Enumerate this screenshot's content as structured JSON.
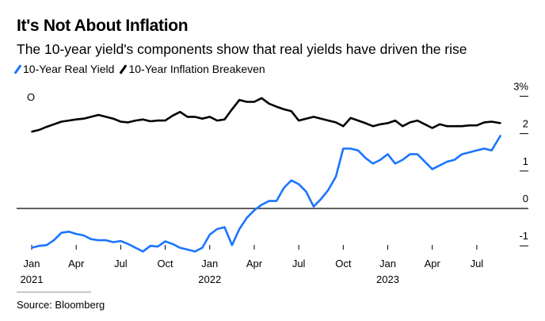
{
  "title": "It's Not About Inflation",
  "subtitle": "The 10-year yield's components show that real yields have driven the rise",
  "source": "Source: Bloomberg",
  "marker_label": "O",
  "chart_data": {
    "type": "line",
    "title": "It's Not About Inflation",
    "xlabel": "",
    "ylabel": "",
    "ylim": [
      -1.2,
      3
    ],
    "y_ticks": [
      {
        "value": 3,
        "label": "3%"
      },
      {
        "value": 2,
        "label": "2"
      },
      {
        "value": 1,
        "label": "1"
      },
      {
        "value": 0,
        "label": "0"
      },
      {
        "value": -1,
        "label": "-1"
      }
    ],
    "x_ticks": [
      {
        "month": 0,
        "label": "Jan",
        "year": "2021"
      },
      {
        "month": 3,
        "label": "Apr",
        "year": ""
      },
      {
        "month": 6,
        "label": "Jul",
        "year": ""
      },
      {
        "month": 9,
        "label": "Oct",
        "year": ""
      },
      {
        "month": 12,
        "label": "Jan",
        "year": "2022"
      },
      {
        "month": 15,
        "label": "Apr",
        "year": ""
      },
      {
        "month": 18,
        "label": "Jul",
        "year": ""
      },
      {
        "month": 21,
        "label": "Oct",
        "year": ""
      },
      {
        "month": 24,
        "label": "Jan",
        "year": "2023"
      },
      {
        "month": 27,
        "label": "Apr",
        "year": ""
      },
      {
        "month": 30,
        "label": "Jul",
        "year": ""
      }
    ],
    "x_unit": "months since Jan 2021",
    "x": [
      0,
      0.5,
      1,
      1.5,
      2,
      2.5,
      3,
      3.5,
      4,
      4.5,
      5,
      5.5,
      6,
      6.5,
      7,
      7.5,
      8,
      8.5,
      9,
      9.5,
      10,
      10.5,
      11,
      11.5,
      12,
      12.5,
      13,
      13.5,
      14,
      14.5,
      15,
      15.5,
      16,
      16.5,
      17,
      17.5,
      18,
      18.5,
      19,
      19.5,
      20,
      20.5,
      21,
      21.5,
      22,
      22.5,
      23,
      23.5,
      24,
      24.5,
      25,
      25.5,
      26,
      26.5,
      27,
      27.5,
      28,
      28.5,
      29,
      29.5,
      30,
      30.5,
      31,
      31.6
    ],
    "series": [
      {
        "name": "10-Year Real Yield",
        "color": "#1a75ff",
        "values": [
          -1.05,
          -1.0,
          -0.98,
          -0.85,
          -0.65,
          -0.62,
          -0.68,
          -0.72,
          -0.82,
          -0.85,
          -0.85,
          -0.9,
          -0.87,
          -0.95,
          -1.05,
          -1.15,
          -1.0,
          -1.02,
          -0.88,
          -0.95,
          -1.05,
          -1.1,
          -1.15,
          -1.05,
          -0.7,
          -0.55,
          -0.5,
          -0.98,
          -0.55,
          -0.25,
          -0.05,
          0.1,
          0.2,
          0.2,
          0.55,
          0.75,
          0.65,
          0.45,
          0.05,
          0.25,
          0.5,
          0.85,
          1.6,
          1.6,
          1.55,
          1.35,
          1.2,
          1.3,
          1.45,
          1.2,
          1.3,
          1.45,
          1.45,
          1.25,
          1.05,
          1.15,
          1.25,
          1.3,
          1.45,
          1.5,
          1.55,
          1.6,
          1.55,
          1.95
        ]
      },
      {
        "name": "10-Year Inflation Breakeven",
        "color": "#000000",
        "values": [
          2.05,
          2.1,
          2.18,
          2.25,
          2.32,
          2.35,
          2.38,
          2.4,
          2.45,
          2.5,
          2.45,
          2.4,
          2.32,
          2.3,
          2.35,
          2.38,
          2.33,
          2.35,
          2.35,
          2.48,
          2.58,
          2.45,
          2.45,
          2.4,
          2.45,
          2.35,
          2.38,
          2.65,
          2.9,
          2.85,
          2.85,
          2.95,
          2.8,
          2.72,
          2.65,
          2.6,
          2.35,
          2.4,
          2.45,
          2.4,
          2.35,
          2.3,
          2.2,
          2.42,
          2.35,
          2.28,
          2.2,
          2.25,
          2.28,
          2.35,
          2.2,
          2.3,
          2.35,
          2.25,
          2.15,
          2.25,
          2.2,
          2.2,
          2.2,
          2.22,
          2.22,
          2.3,
          2.32,
          2.28
        ]
      }
    ],
    "reference_line": 0,
    "grid": false,
    "legend": "top-left"
  }
}
